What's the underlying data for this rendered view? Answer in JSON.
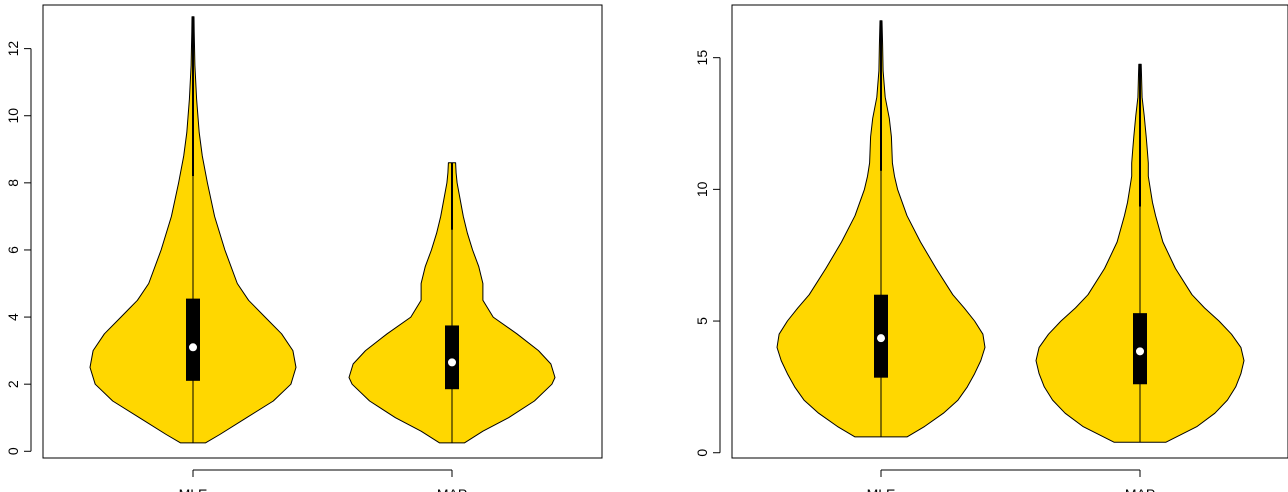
{
  "chart_data": [
    {
      "type": "violin",
      "categories": [
        "MLE",
        "MAP"
      ],
      "ylim": [
        -0.2,
        13.3
      ],
      "yticks": [
        0,
        2,
        4,
        6,
        8,
        10,
        12
      ],
      "ytick_labels": [
        "0",
        "2",
        "4",
        "6",
        "8",
        "10",
        "12"
      ],
      "fill_color": "#FFD700",
      "median_color": "#ffffff",
      "violins": [
        {
          "label": "MLE",
          "min": 0.25,
          "q1": 2.1,
          "median": 3.1,
          "q3": 4.55,
          "whisker_low": 0.25,
          "whisker_high": 8.2,
          "max": 12.95,
          "density": [
            [
              0.25,
              0.12
            ],
            [
              0.5,
              0.26
            ],
            [
              1.0,
              0.52
            ],
            [
              1.5,
              0.78
            ],
            [
              2.0,
              0.95
            ],
            [
              2.5,
              1.0
            ],
            [
              3.0,
              0.97
            ],
            [
              3.5,
              0.86
            ],
            [
              4.0,
              0.7
            ],
            [
              4.5,
              0.54
            ],
            [
              5.0,
              0.43
            ],
            [
              6.0,
              0.31
            ],
            [
              7.0,
              0.21
            ],
            [
              8.0,
              0.14
            ],
            [
              8.8,
              0.09
            ],
            [
              9.5,
              0.06
            ],
            [
              10.5,
              0.035
            ],
            [
              11.5,
              0.018
            ],
            [
              12.5,
              0.012
            ],
            [
              12.95,
              0.01
            ]
          ]
        },
        {
          "label": "MAP",
          "min": 0.25,
          "q1": 1.85,
          "median": 2.65,
          "q3": 3.75,
          "whisker_low": 0.25,
          "whisker_high": 6.6,
          "max": 8.6,
          "density": [
            [
              0.25,
              0.12
            ],
            [
              0.6,
              0.3
            ],
            [
              1.0,
              0.55
            ],
            [
              1.5,
              0.8
            ],
            [
              2.0,
              0.97
            ],
            [
              2.2,
              1.0
            ],
            [
              2.6,
              0.96
            ],
            [
              3.0,
              0.84
            ],
            [
              3.5,
              0.63
            ],
            [
              4.0,
              0.4
            ],
            [
              4.5,
              0.3
            ],
            [
              5.0,
              0.3
            ],
            [
              5.5,
              0.26
            ],
            [
              6.0,
              0.2
            ],
            [
              6.5,
              0.15
            ],
            [
              7.0,
              0.11
            ],
            [
              7.5,
              0.08
            ],
            [
              8.0,
              0.05
            ],
            [
              8.3,
              0.04
            ],
            [
              8.6,
              0.035
            ]
          ]
        }
      ]
    },
    {
      "type": "violin",
      "categories": [
        "MLE",
        "MAP"
      ],
      "ylim": [
        -0.2,
        17.0
      ],
      "yticks": [
        0,
        5,
        10,
        15
      ],
      "ytick_labels": [
        "0",
        "5",
        "10",
        "15"
      ],
      "fill_color": "#FFD700",
      "median_color": "#ffffff",
      "violins": [
        {
          "label": "MLE",
          "min": 0.6,
          "q1": 2.85,
          "median": 4.35,
          "q3": 6.0,
          "whisker_low": 0.6,
          "whisker_high": 10.7,
          "max": 16.4,
          "density": [
            [
              0.6,
              0.25
            ],
            [
              1.0,
              0.42
            ],
            [
              1.5,
              0.6
            ],
            [
              2.0,
              0.74
            ],
            [
              2.5,
              0.83
            ],
            [
              3.0,
              0.9
            ],
            [
              3.5,
              0.96
            ],
            [
              4.0,
              1.0
            ],
            [
              4.5,
              0.98
            ],
            [
              5.0,
              0.9
            ],
            [
              5.5,
              0.8
            ],
            [
              6.0,
              0.69
            ],
            [
              7.0,
              0.53
            ],
            [
              8.0,
              0.38
            ],
            [
              9.0,
              0.25
            ],
            [
              10.0,
              0.16
            ],
            [
              10.5,
              0.13
            ],
            [
              11.0,
              0.11
            ],
            [
              12.0,
              0.1
            ],
            [
              12.7,
              0.08
            ],
            [
              13.5,
              0.04
            ],
            [
              14.5,
              0.02
            ],
            [
              15.5,
              0.015
            ],
            [
              16.4,
              0.01
            ]
          ]
        },
        {
          "label": "MAP",
          "min": 0.4,
          "q1": 2.6,
          "median": 3.85,
          "q3": 5.3,
          "whisker_low": 0.4,
          "whisker_high": 9.35,
          "max": 14.75,
          "density": [
            [
              0.4,
              0.25
            ],
            [
              1.0,
              0.55
            ],
            [
              1.5,
              0.72
            ],
            [
              2.0,
              0.84
            ],
            [
              2.5,
              0.92
            ],
            [
              3.0,
              0.97
            ],
            [
              3.5,
              1.0
            ],
            [
              4.0,
              0.97
            ],
            [
              4.5,
              0.88
            ],
            [
              5.0,
              0.76
            ],
            [
              5.5,
              0.62
            ],
            [
              6.0,
              0.5
            ],
            [
              7.0,
              0.34
            ],
            [
              8.0,
              0.22
            ],
            [
              9.0,
              0.15
            ],
            [
              9.5,
              0.12
            ],
            [
              10.0,
              0.1
            ],
            [
              10.5,
              0.08
            ],
            [
              11.0,
              0.08
            ],
            [
              11.5,
              0.07
            ],
            [
              12.0,
              0.06
            ],
            [
              12.8,
              0.04
            ],
            [
              13.5,
              0.02
            ],
            [
              14.2,
              0.015
            ],
            [
              14.75,
              0.012
            ]
          ]
        }
      ]
    }
  ]
}
